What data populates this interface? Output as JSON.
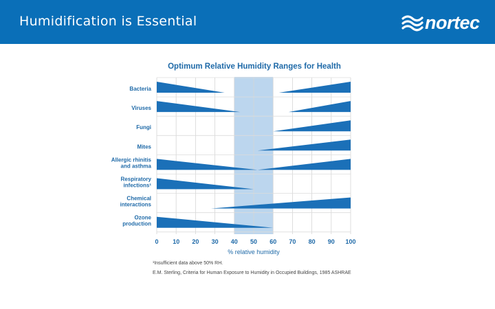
{
  "slide": {
    "title": "Humidification is Essential",
    "logo_text": "nortec",
    "header_color": "#0a6fb8"
  },
  "footnotes": [
    "¹Insufficient data above 50% RH.",
    "E.M. Sterling, Criteria for Human Exposure to Humidity in Occupied Buildings, 1985 ASHRAE"
  ],
  "chart_data": {
    "type": "area",
    "title": "Optimum Relative Humidity Ranges for Health",
    "xlabel": "% relative humidity",
    "xlim": [
      0,
      100
    ],
    "x_ticks": [
      0,
      10,
      20,
      30,
      40,
      50,
      60,
      70,
      80,
      90,
      100
    ],
    "optimum_zone": [
      40,
      60
    ],
    "bar_color": "#1b70b8",
    "zone_color": "#bcd6ee",
    "grid": true,
    "rows": [
      {
        "label": [
          "Bacteria"
        ],
        "left": {
          "from": 0,
          "to": 35
        },
        "right": {
          "from": 63,
          "to": 100
        }
      },
      {
        "label": [
          "Viruses"
        ],
        "left": {
          "from": 0,
          "to": 43
        },
        "right": {
          "from": 68,
          "to": 100
        }
      },
      {
        "label": [
          "Fungi"
        ],
        "left": null,
        "right": {
          "from": 60,
          "to": 100
        }
      },
      {
        "label": [
          "Mites"
        ],
        "left": null,
        "right": {
          "from": 52,
          "to": 100
        }
      },
      {
        "label": [
          "Allergic rhinitis",
          "and asthma"
        ],
        "left": {
          "from": 0,
          "to": 52
        },
        "right": {
          "from": 52,
          "to": 100
        }
      },
      {
        "label": [
          "Respiratory",
          "infections¹"
        ],
        "left": {
          "from": 0,
          "to": 50
        },
        "right": null
      },
      {
        "label": [
          "Chemical",
          "interactions"
        ],
        "left": null,
        "right": {
          "from": 28,
          "to": 100
        }
      },
      {
        "label": [
          "Ozone",
          "production"
        ],
        "left": {
          "from": 0,
          "to": 60
        },
        "right": null
      }
    ]
  }
}
